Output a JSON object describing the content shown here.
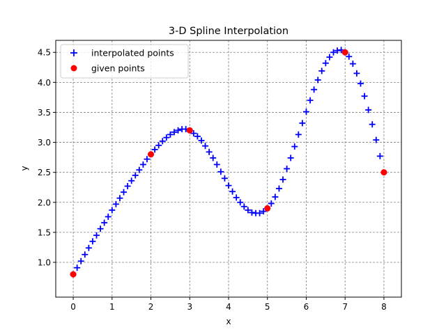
{
  "chart_data": {
    "type": "scatter",
    "title": "3-D Spline Interpolation",
    "xlabel": "x",
    "ylabel": "y",
    "xlim": [
      -0.45,
      8.45
    ],
    "ylim": [
      0.42,
      4.7
    ],
    "xticks": [
      0,
      1,
      2,
      3,
      4,
      5,
      6,
      7,
      8
    ],
    "yticks": [
      1.0,
      1.5,
      2.0,
      2.5,
      3.0,
      3.5,
      4.0,
      4.5
    ],
    "xtick_labels": [
      "0",
      "1",
      "2",
      "3",
      "4",
      "5",
      "6",
      "7",
      "8"
    ],
    "ytick_labels": [
      "1.0",
      "1.5",
      "2.0",
      "2.5",
      "3.0",
      "3.5",
      "4.0",
      "4.5"
    ],
    "grid": true,
    "legend_position": "top-left",
    "series": [
      {
        "name": "interpolated points",
        "marker": "plus",
        "color": "#0000ff",
        "points": [
          [
            0.0,
            0.8
          ],
          [
            0.1,
            0.91
          ],
          [
            0.2,
            1.02
          ],
          [
            0.3,
            1.13
          ],
          [
            0.4,
            1.24
          ],
          [
            0.5,
            1.35
          ],
          [
            0.6,
            1.45
          ],
          [
            0.7,
            1.56
          ],
          [
            0.8,
            1.66
          ],
          [
            0.9,
            1.76
          ],
          [
            1.0,
            1.87
          ],
          [
            1.1,
            1.97
          ],
          [
            1.2,
            2.07
          ],
          [
            1.3,
            2.17
          ],
          [
            1.4,
            2.27
          ],
          [
            1.5,
            2.36
          ],
          [
            1.6,
            2.45
          ],
          [
            1.7,
            2.54
          ],
          [
            1.8,
            2.63
          ],
          [
            1.9,
            2.72
          ],
          [
            2.0,
            2.8
          ],
          [
            2.1,
            2.88
          ],
          [
            2.2,
            2.95
          ],
          [
            2.3,
            3.02
          ],
          [
            2.4,
            3.08
          ],
          [
            2.5,
            3.13
          ],
          [
            2.6,
            3.17
          ],
          [
            2.7,
            3.2
          ],
          [
            2.8,
            3.22
          ],
          [
            2.9,
            3.22
          ],
          [
            3.0,
            3.2
          ],
          [
            3.1,
            3.15
          ],
          [
            3.2,
            3.1
          ],
          [
            3.3,
            3.03
          ],
          [
            3.4,
            2.94
          ],
          [
            3.5,
            2.84
          ],
          [
            3.6,
            2.74
          ],
          [
            3.7,
            2.63
          ],
          [
            3.8,
            2.51
          ],
          [
            3.9,
            2.4
          ],
          [
            4.0,
            2.28
          ],
          [
            4.1,
            2.18
          ],
          [
            4.2,
            2.08
          ],
          [
            4.3,
            2.0
          ],
          [
            4.4,
            1.93
          ],
          [
            4.5,
            1.87
          ],
          [
            4.6,
            1.83
          ],
          [
            4.7,
            1.82
          ],
          [
            4.8,
            1.82
          ],
          [
            4.9,
            1.85
          ],
          [
            5.0,
            1.9
          ],
          [
            5.1,
            1.98
          ],
          [
            5.2,
            2.09
          ],
          [
            5.3,
            2.23
          ],
          [
            5.4,
            2.38
          ],
          [
            5.5,
            2.56
          ],
          [
            5.6,
            2.74
          ],
          [
            5.7,
            2.93
          ],
          [
            5.8,
            3.13
          ],
          [
            5.9,
            3.32
          ],
          [
            6.0,
            3.51
          ],
          [
            6.1,
            3.7
          ],
          [
            6.2,
            3.88
          ],
          [
            6.3,
            4.04
          ],
          [
            6.4,
            4.19
          ],
          [
            6.5,
            4.32
          ],
          [
            6.6,
            4.42
          ],
          [
            6.7,
            4.5
          ],
          [
            6.8,
            4.53
          ],
          [
            6.9,
            4.54
          ],
          [
            7.0,
            4.5
          ],
          [
            7.1,
            4.43
          ],
          [
            7.2,
            4.31
          ],
          [
            7.3,
            4.15
          ],
          [
            7.4,
            3.98
          ],
          [
            7.5,
            3.77
          ],
          [
            7.6,
            3.54
          ],
          [
            7.7,
            3.3
          ],
          [
            7.8,
            3.04
          ],
          [
            7.9,
            2.77
          ]
        ]
      },
      {
        "name": "given points",
        "marker": "circle",
        "color": "#ff0000",
        "points": [
          [
            0,
            0.8
          ],
          [
            2,
            2.8
          ],
          [
            3,
            3.2
          ],
          [
            5,
            1.9
          ],
          [
            7,
            4.5
          ],
          [
            8,
            2.5
          ]
        ]
      }
    ]
  }
}
